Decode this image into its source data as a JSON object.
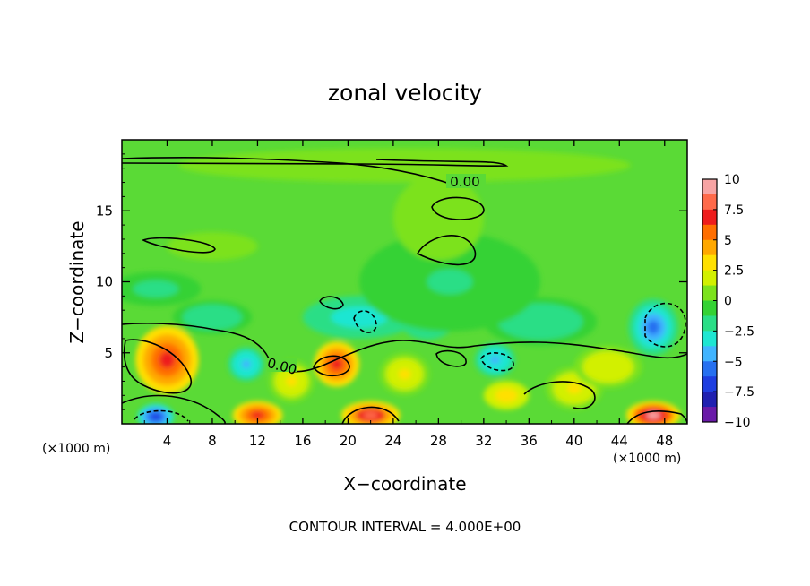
{
  "chart_data": {
    "type": "heatmap",
    "title": "zonal velocity",
    "xlabel": "X−coordinate",
    "ylabel": "Z−coordinate",
    "x_unit_left": "(×1000 m)",
    "x_unit_right": "(×1000 m)",
    "footer": "CONTOUR INTERVAL = 4.000E+00",
    "contour_label": "0.00",
    "xlim": [
      0,
      50
    ],
    "ylim": [
      0,
      20
    ],
    "x_ticks": [
      "4",
      "8",
      "12",
      "16",
      "20",
      "24",
      "28",
      "32",
      "36",
      "40",
      "44",
      "48"
    ],
    "y_ticks": [
      "5",
      "10",
      "15"
    ],
    "colorbar": {
      "range": [
        -10,
        10
      ],
      "labels": [
        "10",
        "7.5",
        "5",
        "2.5",
        "0",
        "−2.5",
        "−5",
        "−7.5",
        "−10"
      ],
      "colors": [
        "#f7a4a4",
        "#ff6a4a",
        "#ee1c1c",
        "#ff6e00",
        "#ffa800",
        "#ffe000",
        "#d2f000",
        "#7ce21c",
        "#34d234",
        "#2ade86",
        "#1ee6d2",
        "#40b4ff",
        "#2670f0",
        "#1e3ee0",
        "#2020b0",
        "#6a1aa8"
      ]
    },
    "blobs": [
      {
        "x": 4,
        "z": 4.5,
        "v": 8,
        "rx": 2.8,
        "rz": 2.4
      },
      {
        "x": 19,
        "z": 4.2,
        "v": 8,
        "rx": 2.0,
        "rz": 1.6
      },
      {
        "x": 12,
        "z": 0.6,
        "v": 8,
        "rx": 2.2,
        "rz": 1.0
      },
      {
        "x": 22,
        "z": 0.6,
        "v": 9,
        "rx": 2.6,
        "rz": 1.0
      },
      {
        "x": 47,
        "z": 0.6,
        "v": 10,
        "rx": 2.4,
        "rz": 1.0
      },
      {
        "x": 3,
        "z": 0.5,
        "v": -8,
        "rx": 1.6,
        "rz": 0.9
      },
      {
        "x": 11,
        "z": 4.2,
        "v": -5,
        "rx": 1.6,
        "rz": 1.2
      },
      {
        "x": 33,
        "z": 4.5,
        "v": -5,
        "rx": 1.8,
        "rz": 1.2
      },
      {
        "x": 47,
        "z": 6.8,
        "v": -6,
        "rx": 2.2,
        "rz": 2.0
      },
      {
        "x": 21,
        "z": 7.5,
        "v": -3.5,
        "rx": 5.0,
        "rz": 1.5
      },
      {
        "x": 27,
        "z": 7.5,
        "v": -3.5,
        "rx": 2.5,
        "rz": 1.6
      },
      {
        "x": 37,
        "z": 7.2,
        "v": -2.5,
        "rx": 5.0,
        "rz": 1.7
      },
      {
        "x": 3,
        "z": 9.5,
        "v": -2,
        "rx": 4.0,
        "rz": 1.2
      },
      {
        "x": 8,
        "z": 7.5,
        "v": -2.5,
        "rx": 3.5,
        "rz": 1.2
      },
      {
        "x": 29,
        "z": 10,
        "v": -1.5,
        "rx": 8.0,
        "rz": 3.5
      },
      {
        "x": 34,
        "z": 2,
        "v": 4,
        "rx": 2.0,
        "rz": 1.0
      },
      {
        "x": 40,
        "z": 2.5,
        "v": 3,
        "rx": 2.5,
        "rz": 1.5
      },
      {
        "x": 15,
        "z": 3,
        "v": 3,
        "rx": 2.0,
        "rz": 1.5
      },
      {
        "x": 25,
        "z": 3.5,
        "v": 3,
        "rx": 2.2,
        "rz": 1.5
      },
      {
        "x": 43,
        "z": 4,
        "v": 2.5,
        "rx": 3.0,
        "rz": 1.5
      },
      {
        "x": 28,
        "z": 14.5,
        "v": 0.5,
        "rx": 4.0,
        "rz": 3.0
      },
      {
        "x": 8,
        "z": 12.5,
        "v": 1,
        "rx": 4.0,
        "rz": 1.0
      },
      {
        "x": 25,
        "z": 18.2,
        "v": 1,
        "rx": 20.0,
        "rz": 1.2
      }
    ]
  }
}
